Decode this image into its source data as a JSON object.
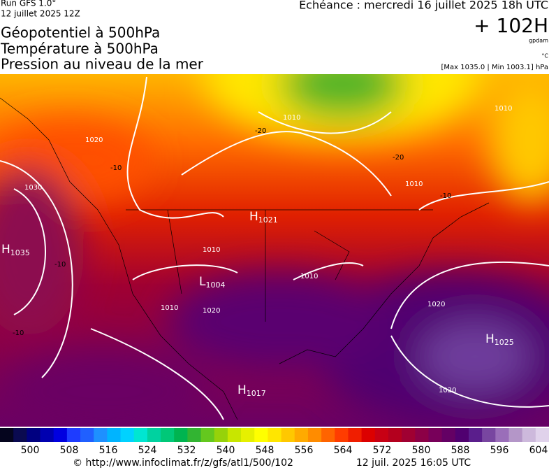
{
  "header": {
    "run": "Run GFS 1.0°",
    "run_date": "12 juillet 2025 12Z",
    "titles": [
      "Géopotentiel à 500hPa",
      "Température à 500hPa",
      "Pression au niveau de la mer"
    ],
    "echeance": "Echéance : mercredi 16 juillet 2025 18h UTC",
    "lead": "+ 102H",
    "unit_geo": "gpdam",
    "unit_temp": "°C",
    "range": "[Max 1035.0 | Min 1003.1] hPa"
  },
  "map": {
    "centers": [
      {
        "letter": "H",
        "value": "1035"
      },
      {
        "letter": "H",
        "value": "1021"
      },
      {
        "letter": "L",
        "value": "1004"
      },
      {
        "letter": "H",
        "value": "1025"
      },
      {
        "letter": "H",
        "value": "1017"
      }
    ],
    "isobar_labels": [
      "1030",
      "1020",
      "1010",
      "1010",
      "1010",
      "1010",
      "1010",
      "1020",
      "1020",
      "1010",
      "1020"
    ],
    "temp_labels": [
      "-20",
      "-20",
      "-10",
      "-10",
      "-10",
      "-10"
    ]
  },
  "colorbar": {
    "colors": [
      "#05051e",
      "#0a0a50",
      "#000080",
      "#0000b0",
      "#0000e0",
      "#1e3cff",
      "#2060ff",
      "#1e90ff",
      "#00b4ff",
      "#00d2ff",
      "#00e6d2",
      "#00d2a0",
      "#00c878",
      "#00b450",
      "#32b432",
      "#64c81e",
      "#96d20a",
      "#c8e600",
      "#e6f000",
      "#ffff00",
      "#ffe600",
      "#ffc800",
      "#ffaa00",
      "#ff8c00",
      "#ff6400",
      "#ff3c00",
      "#f01e00",
      "#dc0000",
      "#c80014",
      "#b4001e",
      "#a00032",
      "#8c0046",
      "#78005a",
      "#640064",
      "#500070",
      "#5a1e8c",
      "#7846a0",
      "#9a6eb9",
      "#b496c8",
      "#cdb9dc",
      "#e0d2eb"
    ],
    "ticks": [
      500,
      508,
      516,
      524,
      532,
      540,
      548,
      556,
      564,
      572,
      580,
      588,
      596,
      604
    ]
  },
  "footer": {
    "url": "© http://www.infoclimat.fr/z/gfs/atl1/500/102",
    "timestamp": "12 juil. 2025 16:05 UTC"
  }
}
